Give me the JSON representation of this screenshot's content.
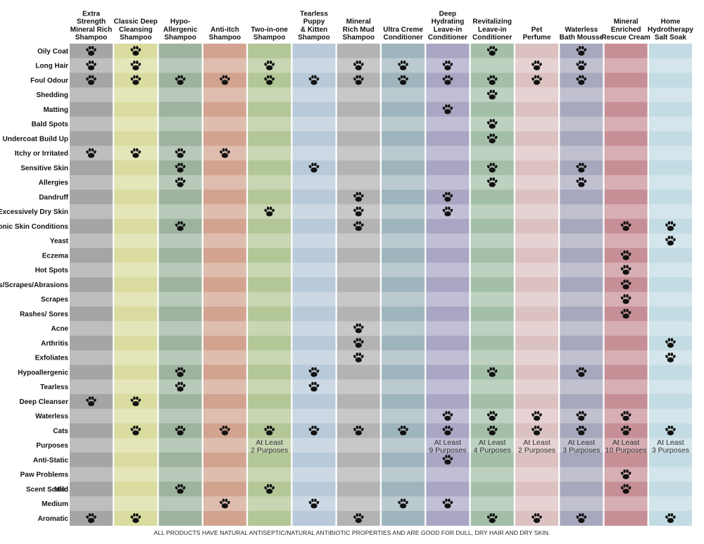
{
  "chart_data": {
    "type": "table",
    "products": [
      {
        "name": "Extra Strength Mineral Rich Shampoo",
        "lines": [
          "Extra",
          "Strength",
          "Mineral Rich",
          "Shampoo"
        ],
        "color": "#a6a4a6"
      },
      {
        "name": "Classic Deep Cleansing Shampoo",
        "lines": [
          "Classic Deep",
          "Cleansing",
          "Shampoo"
        ],
        "color": "#d9dc9e"
      },
      {
        "name": "Hypo-Allergenic Shampoo",
        "lines": [
          "Hypo-",
          "Allergenic",
          "Shampoo"
        ],
        "color": "#9db39e"
      },
      {
        "name": "Anti-itch Shampoo",
        "lines": [
          "Anti-itch",
          "Shampoo"
        ],
        "color": "#d2a38f"
      },
      {
        "name": "Two-in-one Shampoo",
        "lines": [
          "Two-in-one",
          "Shampoo"
        ],
        "color": "#b3c696"
      },
      {
        "name": "Tearless Puppy & Kitten Shampoo",
        "lines": [
          "Tearless",
          "Puppy",
          "& Kitten",
          "Shampoo"
        ],
        "color": "#b8c9d9"
      },
      {
        "name": "Mineral Rich Mud Shampoo",
        "lines": [
          "Mineral",
          "Rich Mud",
          "Shampoo"
        ],
        "color": "#b3b3b3"
      },
      {
        "name": "Ultra Creme Conditioner",
        "lines": [
          "Ultra Creme",
          "Conditioner"
        ],
        "color": "#9fb5bd"
      },
      {
        "name": "Deep Hydrating Leave-in Conditioner",
        "lines": [
          "Deep",
          "Hydrating",
          "Leave-in",
          "Conditioner"
        ],
        "color": "#a9a6c4"
      },
      {
        "name": "Revitalizing Leave-in Conditioner",
        "lines": [
          "Revitalizing",
          "Leave-in",
          "Conditioner"
        ],
        "color": "#a3bfa8"
      },
      {
        "name": "Pet Perfume",
        "lines": [
          "Pet",
          "Perfume"
        ],
        "color": "#dcc1c1"
      },
      {
        "name": "Waterless Bath Mousse",
        "lines": [
          "Waterless",
          "Bath Mousse"
        ],
        "color": "#a7a8bd"
      },
      {
        "name": "Mineral Enriched Rescue Cream",
        "lines": [
          "Mineral",
          "Enriched",
          "Rescue Cream"
        ],
        "color": "#c68f95"
      },
      {
        "name": "Home Hydrotherapy Salt Soak",
        "lines": [
          "Home",
          "Hydrotherapy",
          "Salt Soak"
        ],
        "color": "#c3dbe3"
      }
    ],
    "rows": [
      {
        "label": "Oily Coat",
        "marks": [
          0,
          1,
          9,
          11
        ]
      },
      {
        "label": "Long Hair",
        "marks": [
          0,
          1,
          4,
          6,
          7,
          8,
          10,
          11
        ]
      },
      {
        "label": "Foul Odour",
        "marks": [
          0,
          1,
          2,
          3,
          4,
          5,
          6,
          7,
          8,
          9,
          10,
          11
        ]
      },
      {
        "label": "Shedding",
        "marks": [
          9
        ]
      },
      {
        "label": "Matting",
        "marks": [
          8
        ]
      },
      {
        "label": "Bald Spots",
        "marks": [
          9
        ]
      },
      {
        "label": "Undercoat Build Up",
        "marks": [
          9
        ]
      },
      {
        "label": "Itchy or Irritated",
        "marks": [
          0,
          1,
          2,
          3
        ]
      },
      {
        "label": "Sensitive Skin",
        "marks": [
          2,
          5,
          9,
          11
        ]
      },
      {
        "label": "Allergies",
        "marks": [
          2,
          9,
          11
        ]
      },
      {
        "label": "Dandruff",
        "marks": [
          6,
          8
        ]
      },
      {
        "label": "Excessively Dry Skin",
        "marks": [
          4,
          6,
          8
        ]
      },
      {
        "label": "Chronic Skin Conditions",
        "marks": [
          2,
          6,
          12,
          13
        ]
      },
      {
        "label": "Yeast",
        "marks": [
          13
        ]
      },
      {
        "label": "Eczema",
        "marks": [
          12
        ]
      },
      {
        "label": "Hot Spots",
        "marks": [
          12
        ]
      },
      {
        "label": "Cuts/Scrapes/Abrasions",
        "marks": [
          12
        ]
      },
      {
        "label": "Scrapes",
        "marks": [
          12
        ]
      },
      {
        "label": "Rashes/ Sores",
        "marks": [
          12
        ]
      },
      {
        "label": "Acne",
        "marks": [
          6
        ]
      },
      {
        "label": "Arthritis",
        "marks": [
          6,
          13
        ]
      },
      {
        "label": "Exfoliates",
        "marks": [
          6,
          13
        ]
      },
      {
        "label": "Hypoallergenic",
        "marks": [
          2,
          5,
          9,
          11
        ]
      },
      {
        "label": "Tearless",
        "marks": [
          2,
          5
        ]
      },
      {
        "label": "Deep Cleanser",
        "marks": [
          0,
          1
        ]
      },
      {
        "label": "Waterless",
        "marks": [
          8,
          9,
          10,
          11,
          12
        ]
      },
      {
        "label": "Cats",
        "marks": [
          1,
          2,
          3,
          4,
          5,
          6,
          7,
          8,
          9,
          10,
          11,
          12,
          13
        ]
      },
      {
        "label": "Purposes",
        "marks": [],
        "text": {
          "4": [
            "At Least",
            "2 Purposes"
          ],
          "8": [
            "At Least",
            "9 Purposes"
          ],
          "9": [
            "At Least",
            "4 Purposes"
          ],
          "10": [
            "At Least",
            "2 Purposes"
          ],
          "11": [
            "At Least",
            "3 Purposes"
          ],
          "12": [
            "At Least",
            "10 Purposes"
          ],
          "13": [
            "At Least",
            "3 Purposes"
          ]
        }
      },
      {
        "label": "Anti-Static",
        "marks": [
          8
        ]
      },
      {
        "label": "Paw Problems",
        "marks": [
          12
        ]
      },
      {
        "label": "Mild",
        "prefix": "Scent Scale:",
        "marks": [
          2,
          4,
          12
        ]
      },
      {
        "label": "Medium",
        "marks": [
          3,
          5,
          7,
          8
        ]
      },
      {
        "label": "Aromatic",
        "marks": [
          0,
          1,
          6,
          9,
          10,
          11,
          13
        ]
      }
    ]
  },
  "footer": "ALL PRODUCTS HAVE NATURAL ANTISEPTIC/NATURAL ANTIBIOTIC PROPERTIES AND ARE GOOD FOR DULL, DRY HAIR AND DRY SKIN.",
  "icon": "paw-print-icon"
}
